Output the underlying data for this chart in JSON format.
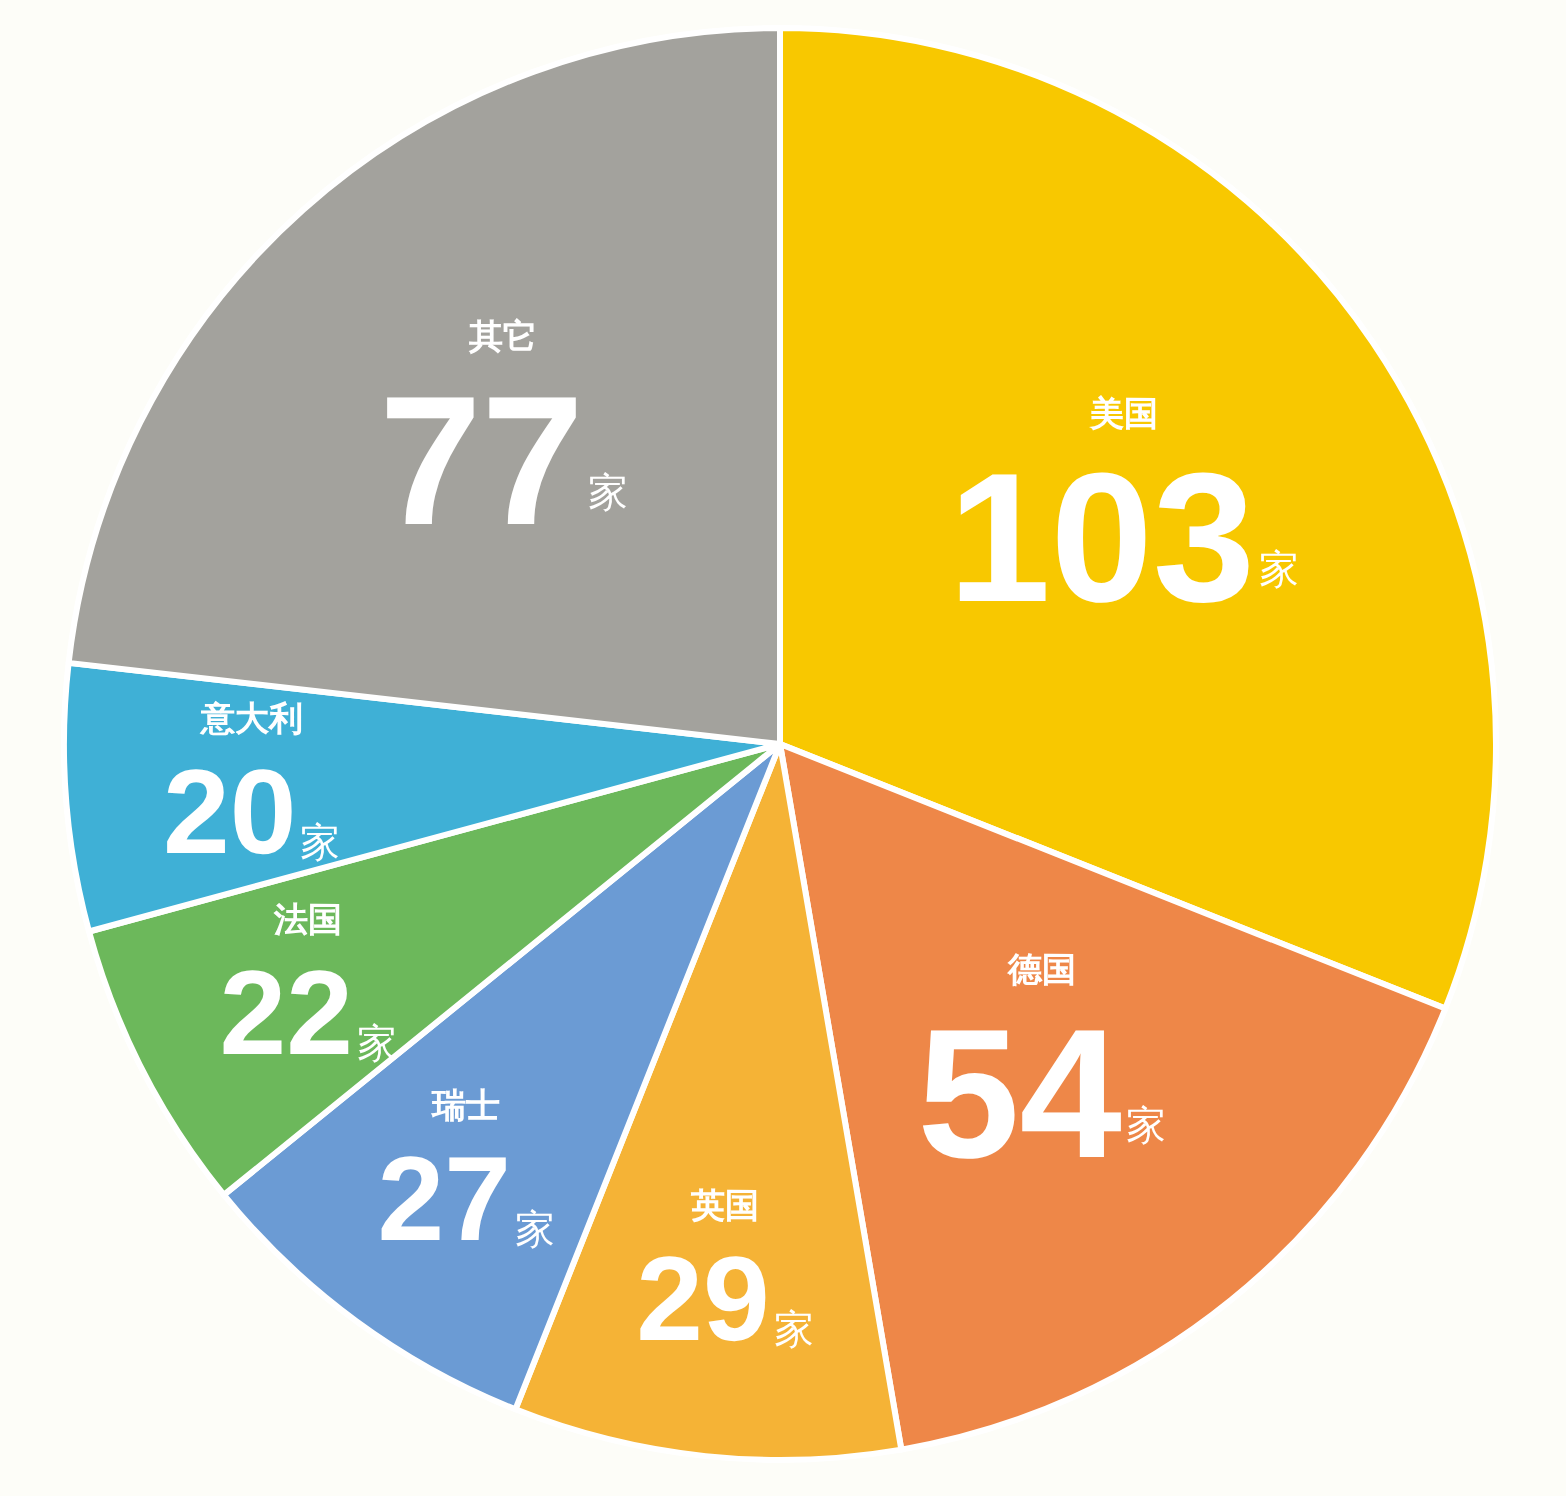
{
  "chart_data": {
    "type": "pie",
    "categories": [
      "美国",
      "德国",
      "英国",
      "瑞士",
      "法国",
      "意大利",
      "其它"
    ],
    "values": [
      103,
      54,
      29,
      27,
      22,
      20,
      77
    ],
    "colors": [
      "#f8c800",
      "#ee8748",
      "#f5b336",
      "#6b9bd4",
      "#6cb85b",
      "#3fb0d6",
      "#a3a29d"
    ],
    "value_labels": [
      "103家",
      "54家",
      "29家",
      "27家",
      "22家",
      "20家",
      "77家"
    ],
    "legend": false
  }
}
